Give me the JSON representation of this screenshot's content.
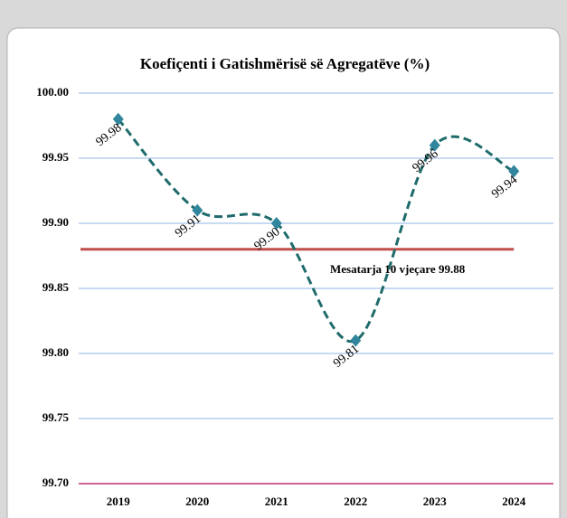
{
  "chart_data": {
    "type": "line",
    "title": "Koefiçenti i Gatishmërisë së Agregatëve (%)",
    "categories": [
      "2019",
      "2020",
      "2021",
      "2022",
      "2023",
      "2024"
    ],
    "values": [
      99.98,
      99.91,
      99.9,
      99.81,
      99.96,
      99.94
    ],
    "value_labels": [
      "99.98",
      "99.91",
      "99.90",
      "99.81",
      "99.96",
      "99.94"
    ],
    "color": "#1f6b6b",
    "marker_color": "#31859c",
    "ylim": [
      99.7,
      100
    ],
    "yticks": [
      {
        "value": 99.7,
        "label": "99.70"
      },
      99.75,
      {
        "value": 99.8,
        "label": "99.80"
      },
      99.85,
      {
        "value": 99.9,
        "label": "99.90"
      },
      99.95,
      {
        "value": 100,
        "label": "100.00"
      }
    ],
    "grid": true,
    "reference_line": {
      "value": 99.88,
      "label": "Mesatarja 10 vjeçare 99.88",
      "color": "#c0504d"
    }
  }
}
